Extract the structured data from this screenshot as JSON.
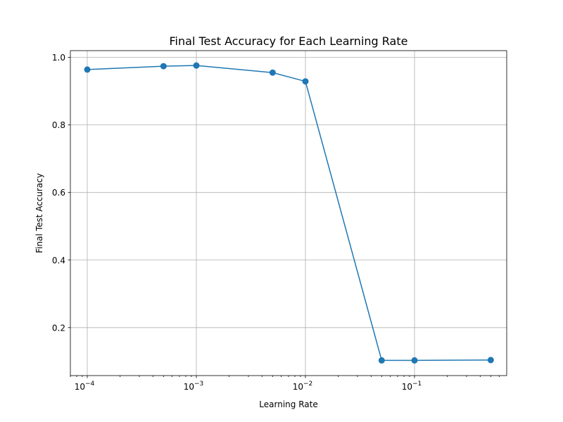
{
  "chart_data": {
    "type": "line",
    "title": "Final Test Accuracy for Each Learning Rate",
    "xlabel": "Learning Rate",
    "ylabel": "Final Test Accuracy",
    "x_scale": "log",
    "xlim": [
      7e-05,
      0.7
    ],
    "ylim": [
      0.058,
      1.02
    ],
    "grid": true,
    "x_ticks": [
      {
        "value": 0.0001,
        "base": "10",
        "exp": "−4"
      },
      {
        "value": 0.001,
        "base": "10",
        "exp": "−3"
      },
      {
        "value": 0.01,
        "base": "10",
        "exp": "−2"
      },
      {
        "value": 0.1,
        "base": "10",
        "exp": "−1"
      }
    ],
    "y_ticks": [
      {
        "value": 0.2,
        "label": "0.2"
      },
      {
        "value": 0.4,
        "label": "0.4"
      },
      {
        "value": 0.6,
        "label": "0.6"
      },
      {
        "value": 0.8,
        "label": "0.8"
      },
      {
        "value": 1.0,
        "label": "1.0"
      }
    ],
    "series": [
      {
        "color": "#1f77b4",
        "x": [
          0.0001,
          0.0005,
          0.001,
          0.005,
          0.01,
          0.05,
          0.1,
          0.5
        ],
        "y": [
          0.964,
          0.974,
          0.976,
          0.955,
          0.929,
          0.103,
          0.103,
          0.104
        ]
      }
    ]
  }
}
